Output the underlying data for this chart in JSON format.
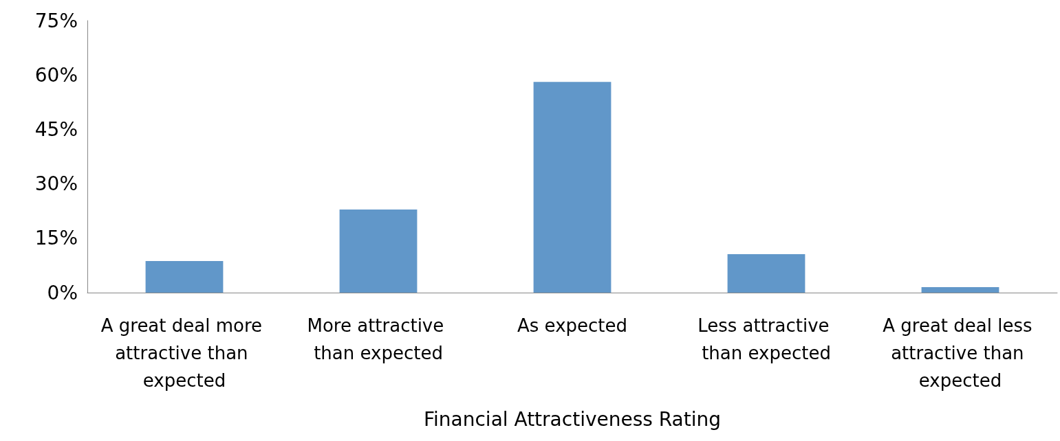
{
  "chart_data": {
    "type": "bar",
    "xlabel": "Financial Attractiveness Rating",
    "categories": [
      "A great deal more attractive than expected",
      "More attractive than expected",
      "As expected",
      "Less attractive than expected",
      "A great deal less attractive than expected"
    ],
    "values": [
      8.7,
      22.9,
      58.1,
      10.6,
      1.5
    ],
    "color": "#6197c9",
    "ylim": [
      0,
      75
    ],
    "yticks": [
      {
        "value": 0,
        "label": "0%"
      },
      {
        "value": 15,
        "label": "15%"
      },
      {
        "value": 30,
        "label": "30%"
      },
      {
        "value": 45,
        "label": "45%"
      },
      {
        "value": 60,
        "label": "60%"
      },
      {
        "value": 75,
        "label": "75%"
      }
    ],
    "grid": false
  }
}
